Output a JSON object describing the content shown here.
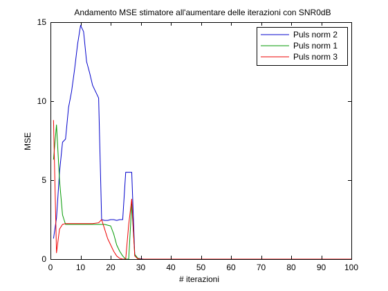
{
  "chart_data": {
    "type": "line",
    "title": "Andamento MSE stimatore all'aumentare delle iterazioni con SNR0dB",
    "xlabel": "# iterazioni",
    "ylabel": "MSE",
    "xlim": [
      0,
      100
    ],
    "ylim": [
      0,
      15
    ],
    "xticks": [
      0,
      10,
      20,
      30,
      40,
      50,
      60,
      70,
      80,
      90,
      100
    ],
    "yticks": [
      0,
      5,
      10,
      15
    ],
    "grid": false,
    "legend_position": "top-right",
    "series": [
      {
        "name": "Puls norm 2",
        "color": "#0000cc",
        "x": [
          1,
          2,
          3,
          4,
          5,
          6,
          7,
          8,
          9,
          10,
          11,
          12,
          13,
          14,
          15,
          16,
          17,
          18,
          19,
          20,
          21,
          22,
          23,
          24,
          25,
          26,
          27,
          28,
          29,
          30,
          31,
          40,
          50,
          60,
          70,
          80,
          90,
          100
        ],
        "y": [
          1.3,
          2.6,
          5.5,
          7.4,
          7.6,
          9.6,
          10.6,
          12.0,
          13.6,
          14.8,
          14.4,
          12.5,
          11.8,
          11.0,
          10.6,
          10.2,
          2.5,
          2.45,
          2.45,
          2.5,
          2.5,
          2.45,
          2.5,
          2.5,
          5.5,
          5.5,
          5.5,
          0.3,
          0.05,
          0.02,
          0.0,
          0.0,
          0.0,
          0.0,
          0.0,
          0.0,
          0.0,
          0.0
        ]
      },
      {
        "name": "Puls norm 1",
        "color": "#009900",
        "x": [
          1,
          2,
          3,
          4,
          5,
          6,
          7,
          8,
          10,
          12,
          14,
          16,
          18,
          20,
          21,
          22,
          23,
          24,
          25,
          26,
          27,
          28,
          29,
          30,
          40,
          50,
          60,
          70,
          80,
          90,
          100
        ],
        "y": [
          6.3,
          8.5,
          5.0,
          2.8,
          2.2,
          2.2,
          2.2,
          2.2,
          2.2,
          2.2,
          2.2,
          2.2,
          2.2,
          2.1,
          1.6,
          0.9,
          0.5,
          0.2,
          0.0,
          0.0,
          3.5,
          0.3,
          0.05,
          0.0,
          0.0,
          0.0,
          0.0,
          0.0,
          0.0,
          0.0,
          0.0
        ]
      },
      {
        "name": "Puls norm 3",
        "color": "#ee0000",
        "x": [
          1,
          2,
          3,
          4,
          5,
          6,
          8,
          10,
          12,
          14,
          16,
          17,
          18,
          19,
          20,
          21,
          22,
          23,
          24,
          25,
          26,
          27,
          28,
          29,
          30,
          40,
          50,
          60,
          70,
          80,
          90,
          100
        ],
        "y": [
          8.8,
          0.4,
          1.9,
          2.2,
          2.25,
          2.25,
          2.25,
          2.25,
          2.25,
          2.25,
          2.3,
          2.5,
          1.9,
          1.3,
          0.9,
          0.5,
          0.2,
          0.05,
          0.0,
          0.0,
          2.2,
          3.8,
          0.2,
          0.02,
          0.0,
          0.0,
          0.0,
          0.0,
          0.0,
          0.0,
          0.0,
          0.0
        ]
      }
    ],
    "legend_order": [
      0,
      1,
      2
    ]
  }
}
